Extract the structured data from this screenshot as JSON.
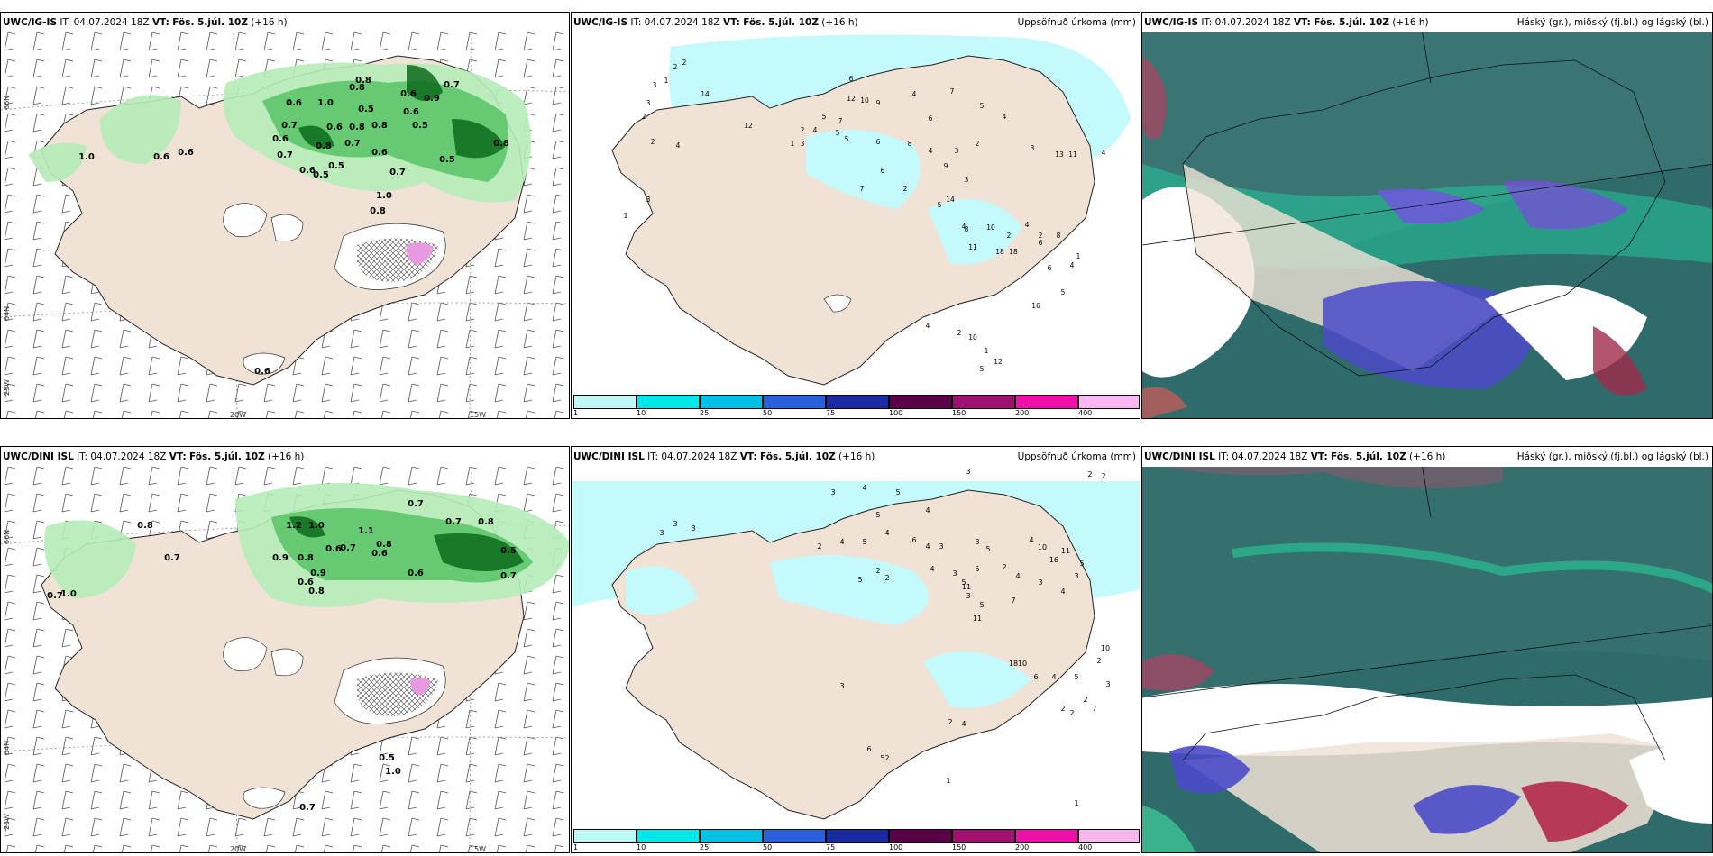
{
  "panels": {
    "top_left": {
      "model": "UWC/IG-IS",
      "it_label": "IT:",
      "it": "04.07.2024 18Z",
      "vt_label": "VT:",
      "vt": "Fös. 5.júl. 10Z",
      "lead": "(+16 h)",
      "right": ""
    },
    "top_mid": {
      "model": "UWC/IG-IS",
      "it_label": "IT:",
      "it": "04.07.2024 18Z",
      "vt_label": "VT:",
      "vt": "Fös. 5.júl. 10Z",
      "lead": "(+16 h)",
      "right": "Uppsöfnuð úrkoma (mm)"
    },
    "top_right": {
      "model": "UWC/IG-IS",
      "it_label": "IT:",
      "it": "04.07.2024 18Z",
      "vt_label": "VT:",
      "vt": "Fös. 5.júl. 10Z",
      "lead": "(+16 h)",
      "right": "Háský (gr.), miðský (fj.bl.) og lágský (bl.)"
    },
    "bot_left": {
      "model": "UWC/DINI ISL",
      "it_label": "IT:",
      "it": "04.07.2024 18Z",
      "vt_label": "VT:",
      "vt": "Fös. 5.júl. 10Z",
      "lead": "(+16 h)",
      "right": ""
    },
    "bot_mid": {
      "model": "UWC/DINI ISL",
      "it_label": "IT:",
      "it": "04.07.2024 18Z",
      "vt_label": "VT:",
      "vt": "Fös. 5.júl. 10Z",
      "lead": "(+16 h)",
      "right": "Uppsöfnuð úrkoma (mm)"
    },
    "bot_right": {
      "model": "UWC/DINI ISL",
      "it_label": "IT:",
      "it": "04.07.2024 18Z",
      "vt_label": "VT:",
      "vt": "Fös. 5.júl. 10Z",
      "lead": "(+16 h)",
      "right": "Háský (gr.), miðský (fj.bl.) og lágský (bl.)"
    }
  },
  "grid_labels": {
    "lon_20": "20W",
    "lon_15": "15W",
    "lat_66": "66N",
    "lat_64": "64N",
    "lon_25": "25W"
  },
  "colorbar": {
    "labels": [
      "1",
      "10",
      "25",
      "50",
      "75",
      "100",
      "150",
      "200",
      "400"
    ],
    "colors": [
      "#bff7f7",
      "#00e8ea",
      "#00c0e8",
      "#2a5fdc",
      "#1a2aa0",
      "#5a0046",
      "#a0106e",
      "#ee10a8",
      "#f6b8ee"
    ]
  },
  "top_left_values": [
    "1.0",
    "0.6",
    "0.6",
    "0.6",
    "1.0",
    "0.8",
    "0.8",
    "0.7",
    "0.6",
    "0.9",
    "0.5",
    "0.6",
    "0.5",
    "0.8",
    "0.7",
    "0.6",
    "0.8",
    "0.6",
    "0.7",
    "0.8",
    "0.6",
    "0.5",
    "0.5",
    "0.8",
    "0.7",
    "0.7",
    "0.6",
    "1.0",
    "0.8",
    "0.5",
    "0.6"
  ],
  "bot_left_values": [
    "0.7",
    "1.0",
    "0.7",
    "0.8",
    "0.7",
    "1.2",
    "1.0",
    "1.1",
    "0.7",
    "0.8",
    "0.9",
    "0.8",
    "0.6",
    "0.7",
    "0.6",
    "0.9",
    "0.6",
    "0.8",
    "0.6",
    "0.5",
    "0.7",
    "1.0",
    "0.5",
    "0.7",
    "0.8"
  ],
  "top_mid_values": [
    "2",
    "2",
    "3",
    "1",
    "3",
    "14",
    "2",
    "4",
    "2",
    "12",
    "6",
    "2",
    "3",
    "3",
    "3",
    "4",
    "2",
    "2",
    "6",
    "12",
    "10",
    "9",
    "4",
    "7",
    "6",
    "5",
    "4",
    "5",
    "7",
    "5",
    "4",
    "2",
    "1",
    "3",
    "5",
    "6",
    "8",
    "4",
    "3",
    "2",
    "3",
    "13",
    "11",
    "4",
    "7",
    "6",
    "2",
    "9",
    "3",
    "5",
    "14",
    "4",
    "8",
    "10",
    "2",
    "4",
    "2",
    "2",
    "6",
    "8",
    "11",
    "18",
    "18",
    "6",
    "4",
    "5",
    "1",
    "16",
    "2",
    "10",
    "1",
    "12",
    "5",
    "4",
    "3",
    "1"
  ],
  "bot_mid_values": [
    "2",
    "2",
    "3",
    "4",
    "5",
    "3",
    "3",
    "3",
    "5",
    "4",
    "5",
    "4",
    "2",
    "6",
    "4",
    "3",
    "3",
    "5",
    "4",
    "3",
    "4",
    "16",
    "10",
    "11",
    "3",
    "5",
    "2",
    "4",
    "3",
    "4",
    "5",
    "2",
    "2",
    "3",
    "5",
    "11",
    "4",
    "5",
    "5",
    "7",
    "3",
    "11",
    "18",
    "10",
    "6",
    "4",
    "5",
    "2",
    "7",
    "2",
    "2",
    "10",
    "2",
    "3",
    "6",
    "5",
    "1",
    "1",
    "2",
    "4",
    "3",
    "2"
  ]
}
